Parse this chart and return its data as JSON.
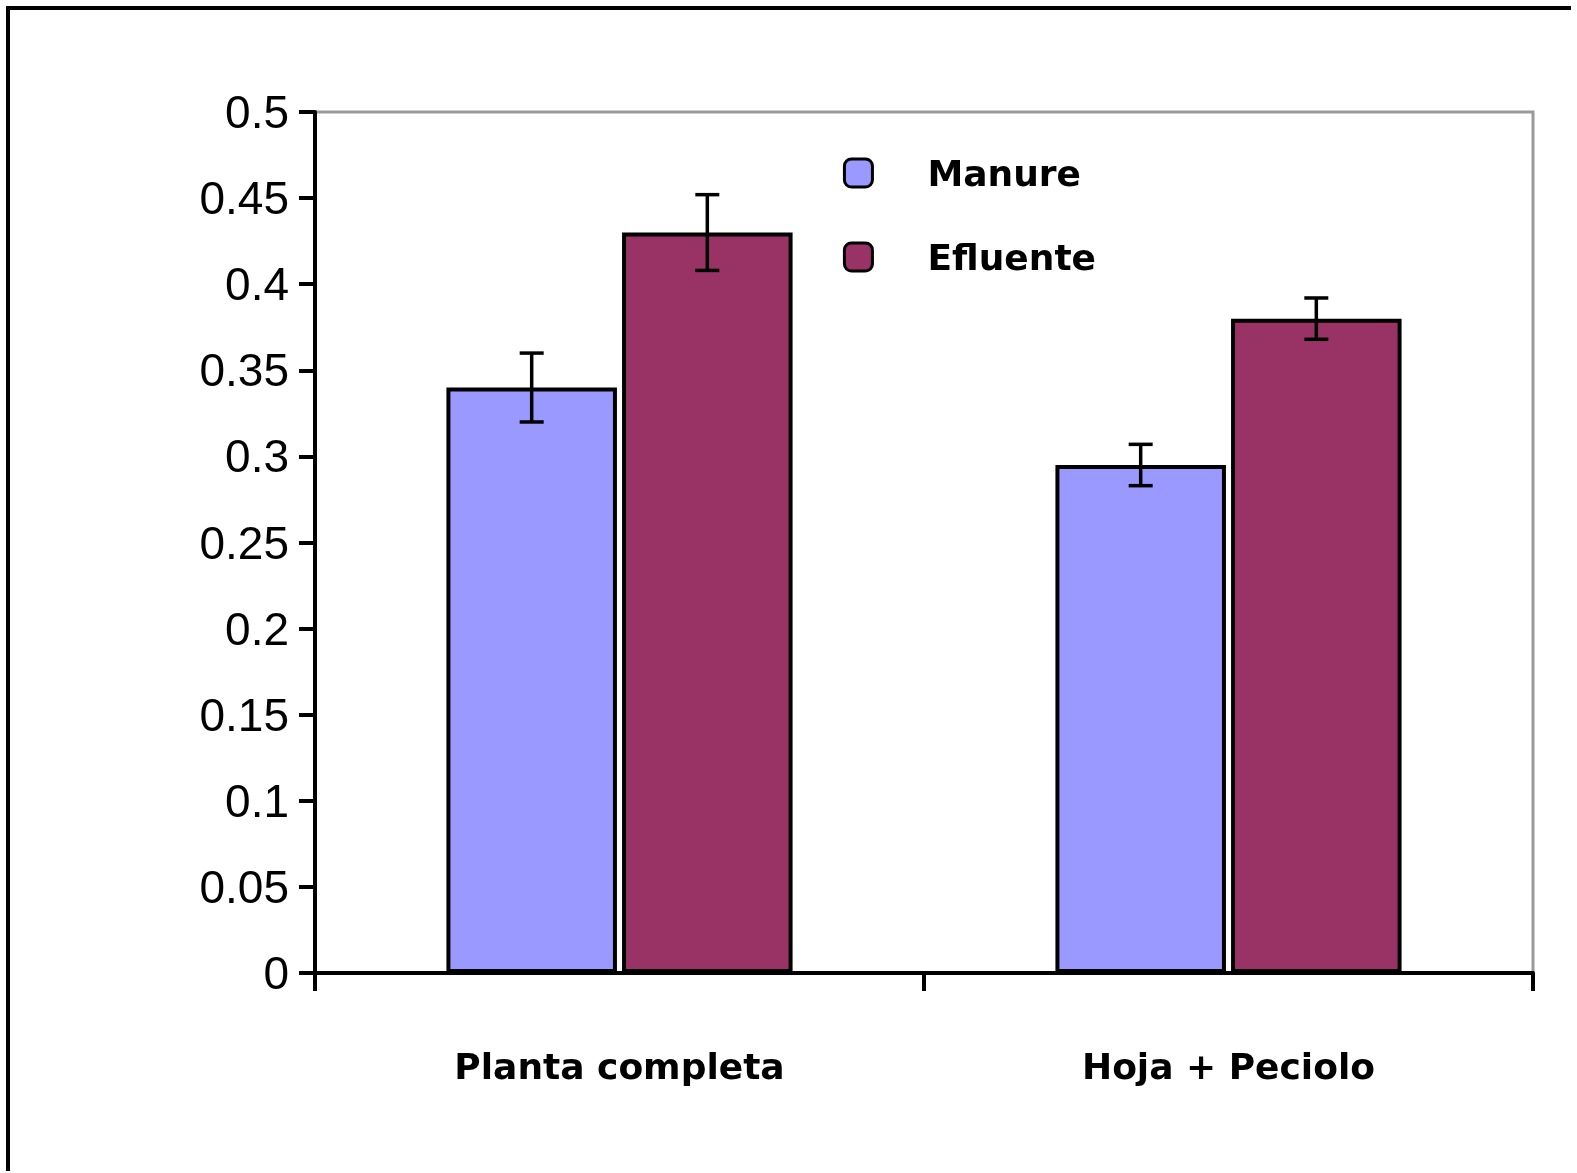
{
  "chart_data": {
    "type": "bar",
    "categories": [
      "Planta completa",
      "Hoja + Peciolo"
    ],
    "series": [
      {
        "name": "Manure",
        "color": "#9999ff",
        "values": [
          0.34,
          0.295
        ],
        "errors": [
          0.02,
          0.012
        ]
      },
      {
        "name": "Efluente",
        "color": "#993366",
        "values": [
          0.43,
          0.38
        ],
        "errors": [
          0.022,
          0.012
        ]
      }
    ],
    "ylim": [
      0,
      0.5
    ],
    "yticks": [
      0,
      0.05,
      0.1,
      0.15,
      0.2,
      0.25,
      0.3,
      0.35,
      0.4,
      0.45,
      0.5
    ],
    "grid": false,
    "legend": "top right"
  }
}
